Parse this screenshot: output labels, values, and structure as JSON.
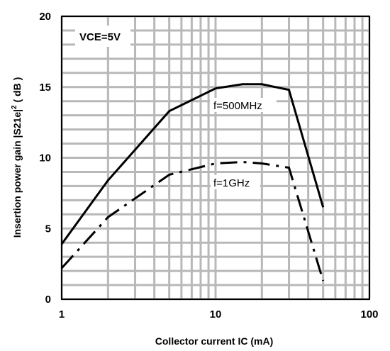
{
  "chart_data": {
    "type": "line",
    "xlabel": "Collector current  IC (mA)",
    "ylabel_main": "Insertion power gain  |S21e|",
    "ylabel_sup": "2",
    "ylabel_unit": " ( dB )",
    "x_scale": "log",
    "xlim": [
      1,
      100
    ],
    "ylim": [
      0,
      20
    ],
    "x_ticks": [
      1,
      10,
      100
    ],
    "x_tick_labels": [
      "1",
      "10",
      "100"
    ],
    "y_ticks": [
      0,
      5,
      10,
      15,
      20
    ],
    "y_tick_labels": [
      "0",
      "5",
      "10",
      "15",
      "20"
    ],
    "grid": true,
    "condition_label": "VCE=5V",
    "series": [
      {
        "name": "f=500MHz",
        "style": "solid",
        "x": [
          1,
          2,
          5,
          10,
          15,
          20,
          30,
          50
        ],
        "y": [
          3.9,
          8.4,
          13.3,
          14.9,
          15.2,
          15.2,
          14.8,
          6.5
        ]
      },
      {
        "name": "f=1GHz",
        "style": "dash-dot",
        "x": [
          1,
          2,
          5,
          10,
          15,
          20,
          30,
          50
        ],
        "y": [
          2.2,
          5.8,
          8.8,
          9.6,
          9.7,
          9.6,
          9.3,
          1.3
        ]
      }
    ]
  }
}
